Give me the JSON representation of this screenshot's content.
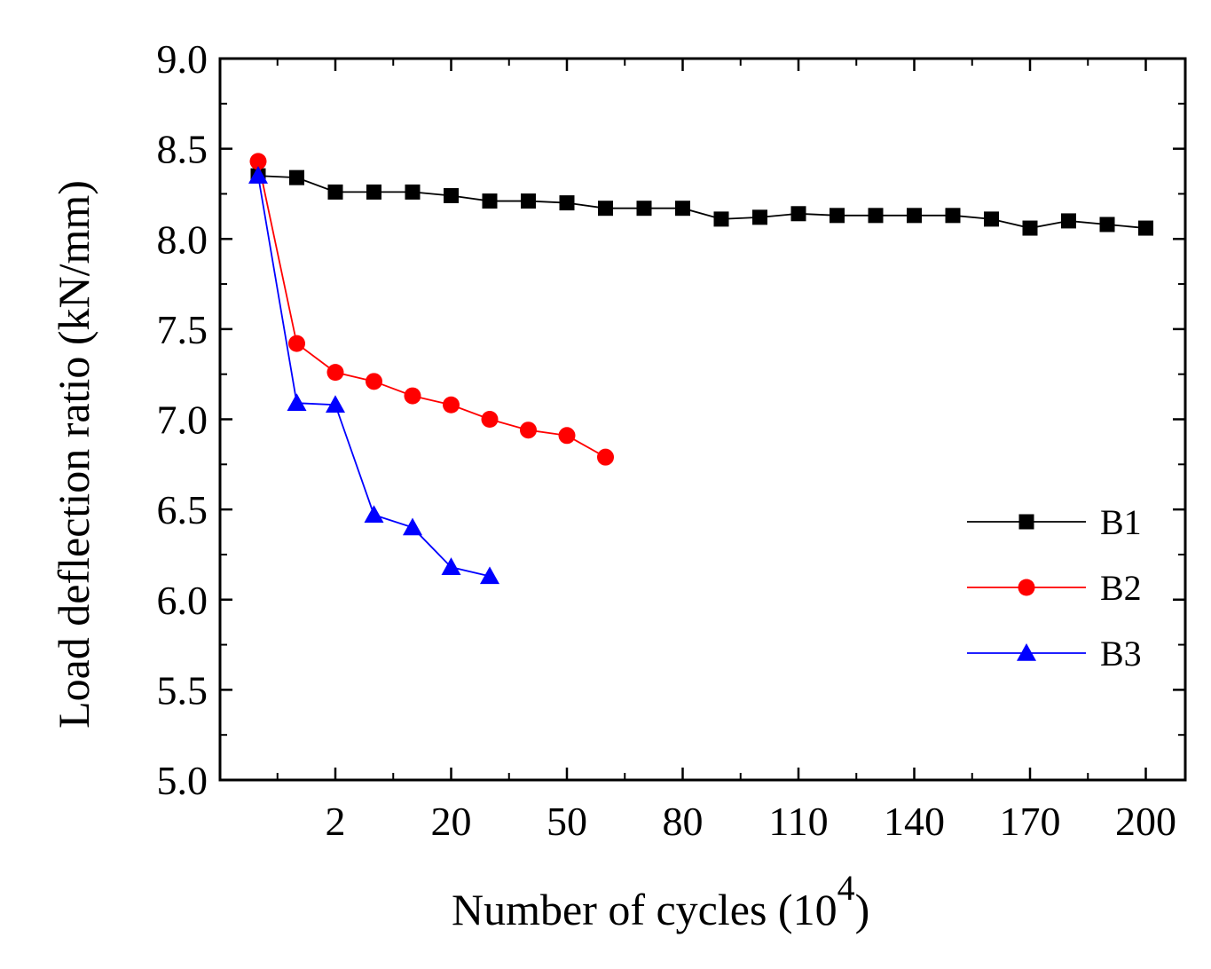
{
  "chart_data": {
    "type": "line",
    "title": "",
    "xlabel": "Number of cycles (10",
    "xlabel_sup": "4",
    "xlabel_close": ")",
    "ylabel": "Load deflection ratio (kN/mm)",
    "ylim": [
      5.0,
      9.0
    ],
    "yticks": [
      "5.0",
      "5.5",
      "6.0",
      "6.5",
      "7.0",
      "7.5",
      "8.0",
      "8.5",
      "9.0"
    ],
    "xtick_labels": [
      "2",
      "20",
      "50",
      "80",
      "110",
      "140",
      "170",
      "200"
    ],
    "legend_position": "right",
    "series": [
      {
        "name": "B1",
        "color": "#000000",
        "marker": "square",
        "values": [
          8.35,
          8.34,
          8.26,
          8.26,
          8.26,
          8.24,
          8.21,
          8.21,
          8.2,
          8.17,
          8.17,
          8.17,
          8.11,
          8.12,
          8.14,
          8.13,
          8.13,
          8.13,
          8.13,
          8.11,
          8.06,
          8.1,
          8.08,
          8.06
        ]
      },
      {
        "name": "B2",
        "color": "#ff0000",
        "marker": "circle",
        "values": [
          8.43,
          7.42,
          7.26,
          7.21,
          7.13,
          7.08,
          7.0,
          6.94,
          6.91,
          6.79
        ]
      },
      {
        "name": "B3",
        "color": "#0000ff",
        "marker": "triangle",
        "values": [
          8.35,
          7.09,
          7.08,
          6.47,
          6.4,
          6.18,
          6.13
        ]
      }
    ]
  }
}
